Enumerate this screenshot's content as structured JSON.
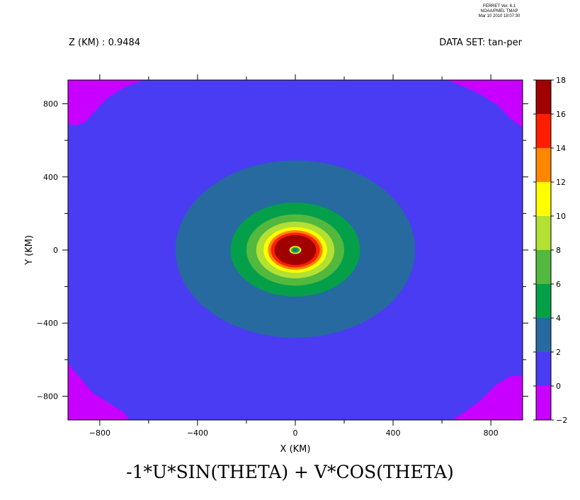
{
  "stamp": {
    "line1": "FERRET Ver. 6.1",
    "line2": "NOAA/PMEL TMAP",
    "line3": "Mar 10 2010 18:07:30"
  },
  "header": {
    "left": "Z (KM) : 0.9484",
    "right": "DATA SET: tan-per"
  },
  "chart_data": {
    "type": "heatmap",
    "title": "-1*U*SIN(THETA) + V*COS(THETA)",
    "xlabel": "X (KM)",
    "ylabel": "Y (KM)",
    "xlim": [
      -930,
      930
    ],
    "ylim": [
      -930,
      930
    ],
    "xticks": [
      -800,
      -400,
      0,
      400,
      800
    ],
    "xtick_labels": [
      "−800",
      "−400",
      "0",
      "400",
      "800"
    ],
    "yticks": [
      -800,
      -400,
      0,
      400,
      800
    ],
    "ytick_labels": [
      "−800",
      "−400",
      "0",
      "400",
      "800"
    ],
    "background_level": {
      "range": [
        0,
        2
      ],
      "color": "#4a3cf3"
    },
    "corner_level": {
      "range": [
        -2,
        0
      ],
      "color": "#c800ff"
    },
    "contours": [
      {
        "range": [
          2,
          4
        ],
        "color": "#266aa0",
        "rx": 490,
        "ry_top": 490,
        "ry_bottom": 480
      },
      {
        "range": [
          4,
          6
        ],
        "color": "#04a049",
        "rx": 265,
        "ry_top": 260,
        "ry_bottom": 255
      },
      {
        "range": [
          6,
          8
        ],
        "color": "#52b83e",
        "rx": 200,
        "ry_top": 195,
        "ry_bottom": 195
      },
      {
        "range": [
          8,
          10
        ],
        "color": "#b2e033",
        "rx": 160,
        "ry_top": 155,
        "ry_bottom": 155
      },
      {
        "range": [
          10,
          12
        ],
        "color": "#ffff00",
        "rx": 130,
        "ry_top": 125,
        "ry_bottom": 125
      },
      {
        "range": [
          12,
          14
        ],
        "color": "#ff8800",
        "rx": 112,
        "ry_top": 108,
        "ry_bottom": 108
      },
      {
        "range": [
          14,
          16
        ],
        "color": "#ff1e00",
        "rx": 100,
        "ry_top": 95,
        "ry_bottom": 95
      },
      {
        "range": [
          16,
          18
        ],
        "color": "#a00000",
        "rx": 85,
        "ry_top": 82,
        "ry_bottom": 82
      }
    ],
    "eye": {
      "value_range": [
        0,
        6
      ],
      "rx": 24,
      "ry": 22,
      "rings": [
        "#ffff00",
        "#52b83e",
        "#04a049",
        "#266aa0"
      ]
    },
    "colorbar": {
      "levels": [
        -2,
        0,
        2,
        4,
        6,
        8,
        10,
        12,
        14,
        16,
        18
      ],
      "labels": [
        "−2",
        "0",
        "2",
        "4",
        "6",
        "8",
        "10",
        "12",
        "14",
        "16",
        "18"
      ],
      "colors": [
        "#c800ff",
        "#4a3cf3",
        "#266aa0",
        "#04a049",
        "#52b83e",
        "#b2e033",
        "#ffff00",
        "#ff8800",
        "#ff1e00",
        "#a00000"
      ]
    }
  }
}
